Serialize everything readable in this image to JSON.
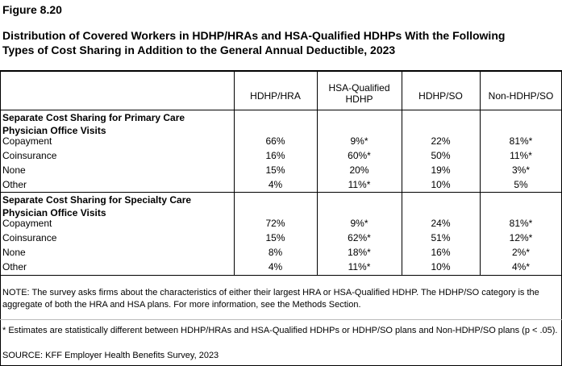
{
  "figure": "Figure 8.20",
  "title_lines": [
    "Distribution of Covered Workers in HDHP/HRAs and HSA-Qualified HDHPs With the Following",
    "Types of Cost Sharing in Addition to the General Annual Deductible, 2023"
  ],
  "table": {
    "columns": [
      "HDHP/HRA",
      "HSA-Qualified HDHP",
      "HDHP/SO",
      "Non-HDHP/SO"
    ],
    "sections": [
      {
        "title": "Separate Cost Sharing for Primary Care Physician Office Visits",
        "rows": [
          {
            "label": "Copayment",
            "values": [
              "66%",
              "9%*",
              "22%",
              "81%*"
            ]
          },
          {
            "label": "Coinsurance",
            "values": [
              "16%",
              "60%*",
              "50%",
              "11%*"
            ]
          },
          {
            "label": "None",
            "values": [
              "15%",
              "20%",
              "19%",
              "3%*"
            ]
          },
          {
            "label": "Other",
            "values": [
              "4%",
              "11%*",
              "10%",
              "5%"
            ]
          }
        ]
      },
      {
        "title": "Separate Cost Sharing for Specialty Care Physician Office Visits",
        "rows": [
          {
            "label": "Copayment",
            "values": [
              "72%",
              "9%*",
              "24%",
              "81%*"
            ]
          },
          {
            "label": "Coinsurance",
            "values": [
              "15%",
              "62%*",
              "51%",
              "12%*"
            ]
          },
          {
            "label": "None",
            "values": [
              "8%",
              "18%*",
              "16%",
              "2%*"
            ]
          },
          {
            "label": "Other",
            "values": [
              "4%",
              "11%*",
              "10%",
              "4%*"
            ]
          }
        ]
      }
    ]
  },
  "note": "NOTE: The survey asks firms about the characteristics of either their largest HRA or HSA-Qualified HDHP. The HDHP/SO category is the aggregate of both the HRA and HSA plans. For more information, see the Methods Section.",
  "footnote": "* Estimates are statistically different between HDHP/HRAs and HSA-Qualified HDHPs or HDHP/SO plans and Non-HDHP/SO plans (p < .05).",
  "source": "SOURCE: KFF Employer Health Benefits Survey, 2023"
}
